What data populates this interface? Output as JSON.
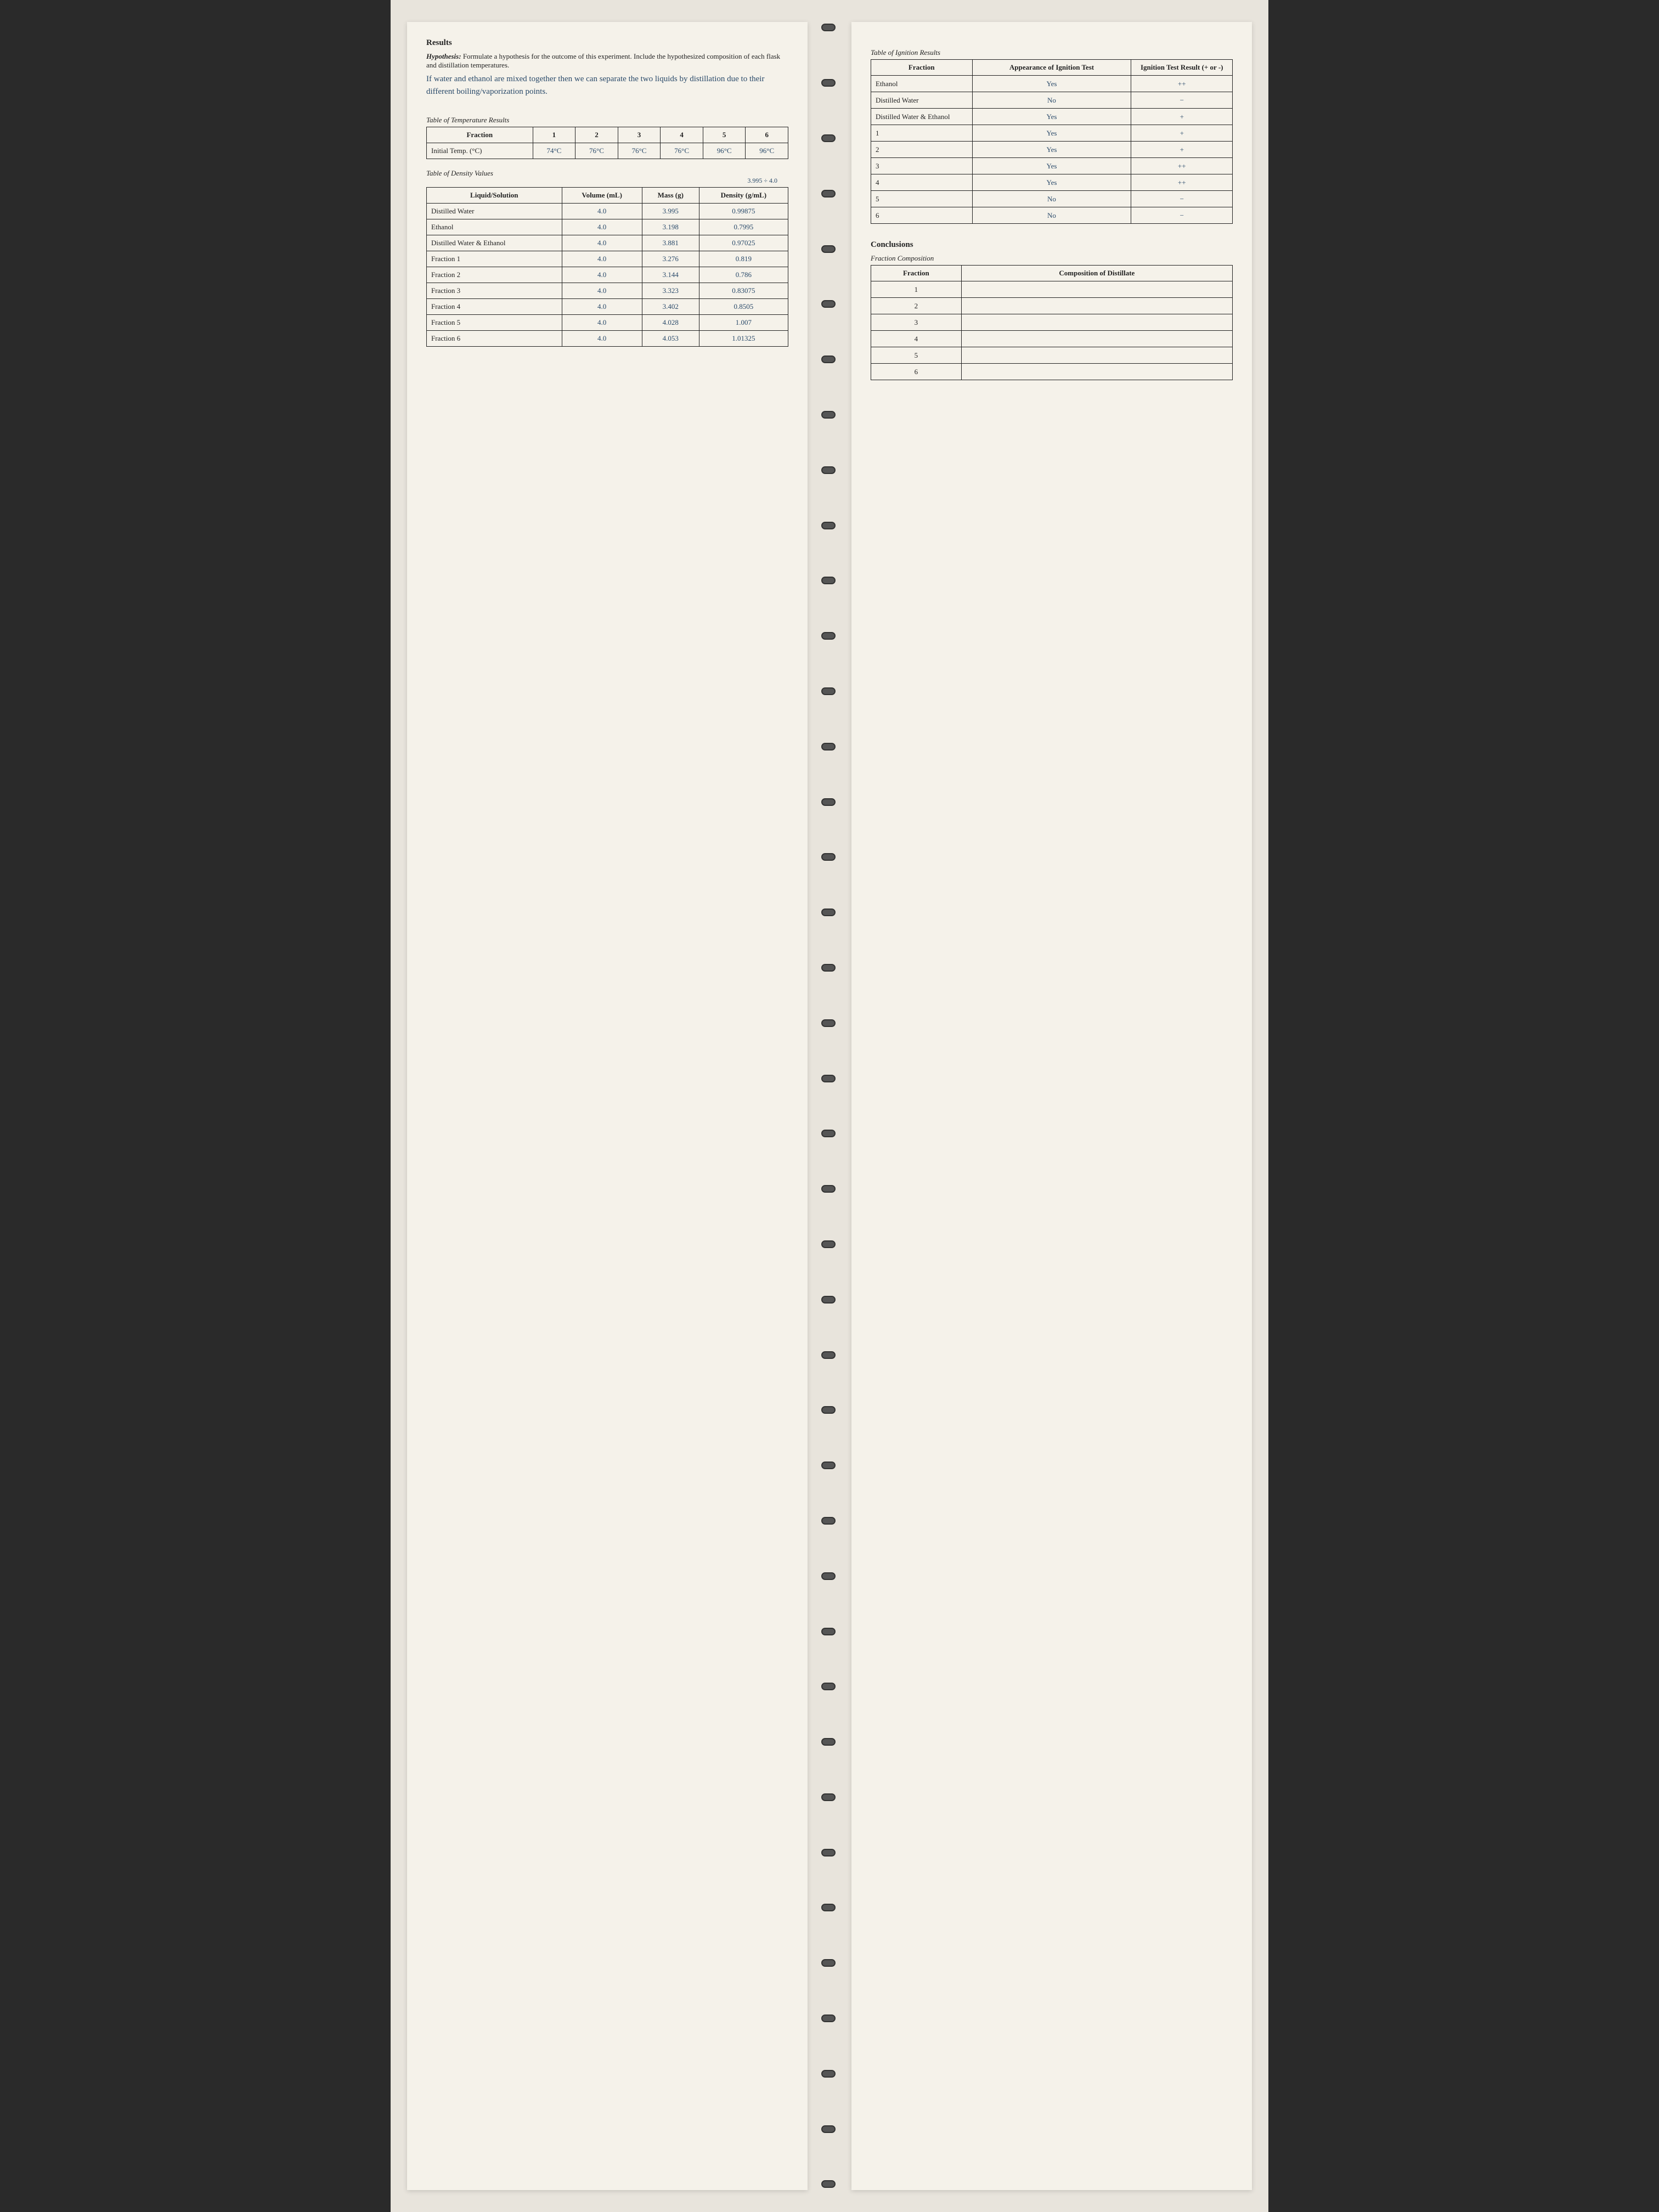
{
  "left": {
    "results_heading": "Results",
    "hypothesis_label": "Hypothesis:",
    "hypothesis_prompt": "Formulate a hypothesis for the outcome of this experiment. Include the hypothesized composition of each flask and distillation temperatures.",
    "hypothesis_handwritten": "If water and ethanol are mixed together then we can separate the two liquids by distillation due to their different boiling/vaporization points.",
    "temp_table_title": "Table of Temperature Results",
    "temp_table": {
      "row_label": "Fraction",
      "cols": [
        "1",
        "2",
        "3",
        "4",
        "5",
        "6"
      ],
      "row2_label": "Initial Temp. (°C)",
      "row2_vals": [
        "74°C",
        "76°C",
        "76°C",
        "76°C",
        "96°C",
        "96°C"
      ]
    },
    "density_note": "3.995 ÷ 4.0",
    "density_table_title": "Table of Density Values",
    "density_table": {
      "headers": [
        "Liquid/Solution",
        "Volume (mL)",
        "Mass (g)",
        "Density (g/mL)"
      ],
      "rows": [
        {
          "label": "Distilled Water",
          "vol": "4.0",
          "mass": "3.995",
          "dens": "0.99875"
        },
        {
          "label": "Ethanol",
          "vol": "4.0",
          "mass": "3.198",
          "dens": "0.7995"
        },
        {
          "label": "Distilled Water & Ethanol",
          "vol": "4.0",
          "mass": "3.881",
          "dens": "0.97025"
        },
        {
          "label": "Fraction 1",
          "vol": "4.0",
          "mass": "3.276",
          "dens": "0.819"
        },
        {
          "label": "Fraction 2",
          "vol": "4.0",
          "mass": "3.144",
          "dens": "0.786"
        },
        {
          "label": "Fraction 3",
          "vol": "4.0",
          "mass": "3.323",
          "dens": "0.83075"
        },
        {
          "label": "Fraction 4",
          "vol": "4.0",
          "mass": "3.402",
          "dens": "0.8505"
        },
        {
          "label": "Fraction 5",
          "vol": "4.0",
          "mass": "4.028",
          "dens": "1.007"
        },
        {
          "label": "Fraction 6",
          "vol": "4.0",
          "mass": "4.053",
          "dens": "1.01325"
        }
      ]
    }
  },
  "right": {
    "ignition_table_title": "Table of Ignition Results",
    "ignition_table": {
      "headers": [
        "Fraction",
        "Appearance of Ignition Test",
        "Ignition Test Result (+ or -)"
      ],
      "rows": [
        {
          "frac": "Ethanol",
          "appear": "Yes",
          "res": "++"
        },
        {
          "frac": "Distilled Water",
          "appear": "No",
          "res": "−"
        },
        {
          "frac": "Distilled Water & Ethanol",
          "appear": "Yes",
          "res": "+"
        },
        {
          "frac": "1",
          "appear": "Yes",
          "res": "+"
        },
        {
          "frac": "2",
          "appear": "Yes",
          "res": "+"
        },
        {
          "frac": "3",
          "appear": "Yes",
          "res": "++"
        },
        {
          "frac": "4",
          "appear": "Yes",
          "res": "++"
        },
        {
          "frac": "5",
          "appear": "No",
          "res": "−"
        },
        {
          "frac": "6",
          "appear": "No",
          "res": "−"
        }
      ]
    },
    "conclusions_heading": "Conclusions",
    "fraction_comp_sub": "Fraction Composition",
    "comp_table": {
      "headers": [
        "Fraction",
        "Composition of Distillate"
      ],
      "rows": [
        "1",
        "2",
        "3",
        "4",
        "5",
        "6"
      ]
    }
  },
  "colors": {
    "page_bg": "#f5f2ea",
    "spread_bg": "#e8e4dc",
    "ink": "#222222",
    "handwriting": "#2a4a6a",
    "border": "#222222"
  }
}
